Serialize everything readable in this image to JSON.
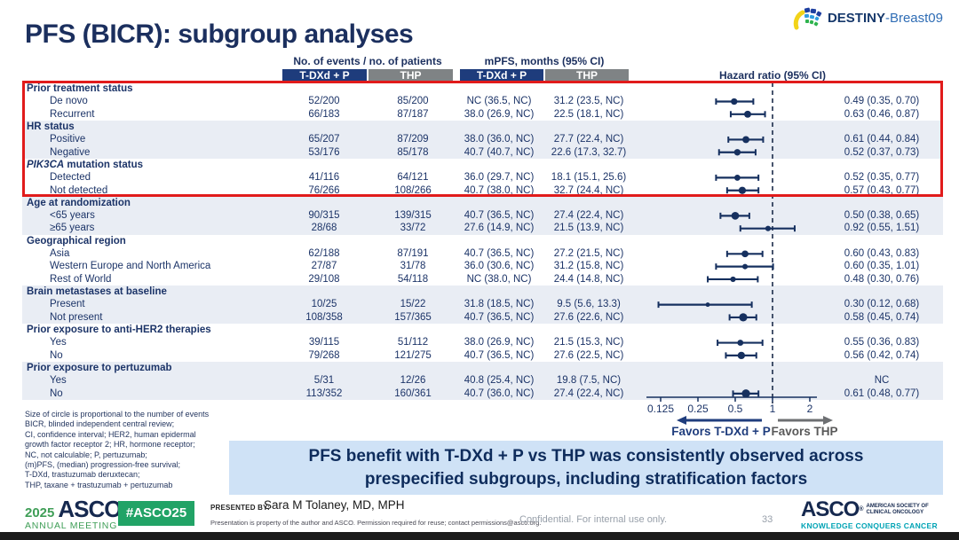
{
  "header": {
    "title": "PFS (BICR): subgroup analyses",
    "logo": {
      "bold": "DESTINY",
      "regular": "-Breast09"
    }
  },
  "table": {
    "group_events": "No. of events / no. of patients",
    "group_mpfs": "mPFS, months (95% CI)",
    "group_hr": "Hazard ratio (95% CI)",
    "subcols": [
      "T-DXd + P",
      "THP",
      "T-DXd + P",
      "THP"
    ]
  },
  "chart_data": {
    "type": "forest",
    "x_scale": "log2",
    "axis": {
      "ticks": [
        "0.125",
        "0.25",
        "0.5",
        "1",
        "2"
      ],
      "reference": 1,
      "favors_left": "Favors T-DXd + P",
      "favors_right": "Favors THP"
    },
    "sections": [
      {
        "label": "Prior treatment status",
        "shaded": false,
        "rows": [
          {
            "label": "De novo",
            "events_tdxd": "52/200",
            "events_thp": "85/200",
            "mpfs_tdxd": "NC (36.5, NC)",
            "mpfs_thp": "31.2 (23.5, NC)",
            "hr": 0.49,
            "ci": [
              0.35,
              0.7
            ],
            "hr_text": "0.49 (0.35, 0.70)"
          },
          {
            "label": "Recurrent",
            "events_tdxd": "66/183",
            "events_thp": "87/187",
            "mpfs_tdxd": "38.0 (26.9, NC)",
            "mpfs_thp": "22.5 (18.1, NC)",
            "hr": 0.63,
            "ci": [
              0.46,
              0.87
            ],
            "hr_text": "0.63 (0.46, 0.87)"
          }
        ]
      },
      {
        "label": "HR status",
        "shaded": true,
        "rows": [
          {
            "label": "Positive",
            "events_tdxd": "65/207",
            "events_thp": "87/209",
            "mpfs_tdxd": "38.0 (36.0, NC)",
            "mpfs_thp": "27.7 (22.4, NC)",
            "hr": 0.61,
            "ci": [
              0.44,
              0.84
            ],
            "hr_text": "0.61 (0.44, 0.84)"
          },
          {
            "label": "Negative",
            "events_tdxd": "53/176",
            "events_thp": "85/178",
            "mpfs_tdxd": "40.7 (40.7, NC)",
            "mpfs_thp": "22.6 (17.3, 32.7)",
            "hr": 0.52,
            "ci": [
              0.37,
              0.73
            ],
            "hr_text": "0.52 (0.37, 0.73)"
          }
        ]
      },
      {
        "label_italic": "PIK3CA",
        "label_rest": " mutation status",
        "shaded": false,
        "rows": [
          {
            "label": "Detected",
            "events_tdxd": "41/116",
            "events_thp": "64/121",
            "mpfs_tdxd": "36.0 (29.7, NC)",
            "mpfs_thp": "18.1 (15.1, 25.6)",
            "hr": 0.52,
            "ci": [
              0.35,
              0.77
            ],
            "hr_text": "0.52 (0.35, 0.77)"
          },
          {
            "label": "Not detected",
            "events_tdxd": "76/266",
            "events_thp": "108/266",
            "mpfs_tdxd": "40.7 (38.0, NC)",
            "mpfs_thp": "32.7 (24.4, NC)",
            "hr": 0.57,
            "ci": [
              0.43,
              0.77
            ],
            "hr_text": "0.57 (0.43, 0.77)"
          }
        ]
      },
      {
        "label": "Age at randomization",
        "shaded": true,
        "rows": [
          {
            "label": "<65 years",
            "events_tdxd": "90/315",
            "events_thp": "139/315",
            "mpfs_tdxd": "40.7 (36.5, NC)",
            "mpfs_thp": "27.4 (22.4, NC)",
            "hr": 0.5,
            "ci": [
              0.38,
              0.65
            ],
            "hr_text": "0.50 (0.38, 0.65)"
          },
          {
            "label": "≥65 years",
            "events_tdxd": "28/68",
            "events_thp": "33/72",
            "mpfs_tdxd": "27.6 (14.9, NC)",
            "mpfs_thp": "21.5 (13.9, NC)",
            "hr": 0.92,
            "ci": [
              0.55,
              1.51
            ],
            "hr_text": "0.92 (0.55, 1.51)"
          }
        ]
      },
      {
        "label": "Geographical region",
        "shaded": false,
        "rows": [
          {
            "label": "Asia",
            "events_tdxd": "62/188",
            "events_thp": "87/191",
            "mpfs_tdxd": "40.7 (36.5, NC)",
            "mpfs_thp": "27.2 (21.5, NC)",
            "hr": 0.6,
            "ci": [
              0.43,
              0.83
            ],
            "hr_text": "0.60 (0.43, 0.83)"
          },
          {
            "label": "Western Europe and North America",
            "events_tdxd": "27/87",
            "events_thp": "31/78",
            "mpfs_tdxd": "36.0 (30.6, NC)",
            "mpfs_thp": "31.2 (15.8, NC)",
            "hr": 0.6,
            "ci": [
              0.35,
              1.01
            ],
            "hr_text": "0.60 (0.35, 1.01)"
          },
          {
            "label": "Rest of World",
            "events_tdxd": "29/108",
            "events_thp": "54/118",
            "mpfs_tdxd": "NC (38.0, NC)",
            "mpfs_thp": "24.4 (14.8, NC)",
            "hr": 0.48,
            "ci": [
              0.3,
              0.76
            ],
            "hr_text": "0.48 (0.30, 0.76)"
          }
        ]
      },
      {
        "label": "Brain metastases at baseline",
        "shaded": true,
        "rows": [
          {
            "label": "Present",
            "events_tdxd": "10/25",
            "events_thp": "15/22",
            "mpfs_tdxd": "31.8 (18.5, NC)",
            "mpfs_thp": "9.5 (5.6, 13.3)",
            "hr": 0.3,
            "ci": [
              0.12,
              0.68
            ],
            "hr_text": "0.30 (0.12, 0.68)"
          },
          {
            "label": "Not present",
            "events_tdxd": "108/358",
            "events_thp": "157/365",
            "mpfs_tdxd": "40.7 (36.5, NC)",
            "mpfs_thp": "27.6 (22.6, NC)",
            "hr": 0.58,
            "ci": [
              0.45,
              0.74
            ],
            "hr_text": "0.58 (0.45, 0.74)"
          }
        ]
      },
      {
        "label": "Prior exposure to anti-HER2 therapies",
        "shaded": false,
        "rows": [
          {
            "label": "Yes",
            "events_tdxd": "39/115",
            "events_thp": "51/112",
            "mpfs_tdxd": "38.0 (26.9, NC)",
            "mpfs_thp": "21.5 (15.3, NC)",
            "hr": 0.55,
            "ci": [
              0.36,
              0.83
            ],
            "hr_text": "0.55 (0.36, 0.83)"
          },
          {
            "label": "No",
            "events_tdxd": "79/268",
            "events_thp": "121/275",
            "mpfs_tdxd": "40.7 (36.5, NC)",
            "mpfs_thp": "27.6 (22.5, NC)",
            "hr": 0.56,
            "ci": [
              0.42,
              0.74
            ],
            "hr_text": "0.56 (0.42, 0.74)"
          }
        ]
      },
      {
        "label": "Prior exposure to pertuzumab",
        "shaded": true,
        "rows": [
          {
            "label": "Yes",
            "events_tdxd": "5/31",
            "events_thp": "12/26",
            "mpfs_tdxd": "40.8 (25.4, NC)",
            "mpfs_thp": "19.8 (7.5, NC)",
            "hr": null,
            "ci": null,
            "hr_text": "NC"
          },
          {
            "label": "No",
            "events_tdxd": "113/352",
            "events_thp": "160/361",
            "mpfs_tdxd": "40.7 (36.0, NC)",
            "mpfs_thp": "27.4 (22.4, NC)",
            "hr": 0.61,
            "ci": [
              0.48,
              0.77
            ],
            "hr_text": "0.61 (0.48, 0.77)"
          }
        ]
      }
    ]
  },
  "footnote_lines": [
    "Size of circle is proportional to the number of events",
    "BICR, blinded independent central review;",
    "CI, confidence interval; HER2, human epidermal",
    "growth factor receptor 2; HR, hormone receptor;",
    "NC, not calculable; P, pertuzumab;",
    "(m)PFS, (median) progression-free survival;",
    "T-DXd, trastuzumab deruxtecan;",
    "THP, taxane + trastuzumab + pertuzumab"
  ],
  "banner": {
    "line1": "PFS benefit with T-DXd + P vs THP was consistently observed across",
    "line2": "prespecified subgroups, including stratification factors"
  },
  "footer": {
    "meeting": {
      "year": "2025",
      "name": "ASCO",
      "sub": "ANNUAL MEETING"
    },
    "hashtag": "#ASCO25",
    "presented_by_label": "PRESENTED BY:",
    "presenter": "Sara M Tolaney, MD, MPH",
    "permission": "Presentation is property of the author and ASCO. Permission required for reuse; contact permissions@asco.org.",
    "confidential": "Confidential. For internal use only.",
    "page": "33",
    "asco_logo": {
      "name": "ASCO",
      "reg": "®",
      "sub1": "AMERICAN SOCIETY OF",
      "sub2": "CLINICAL ONCOLOGY",
      "tagline": "KNOWLEDGE CONQUERS CANCER"
    }
  }
}
